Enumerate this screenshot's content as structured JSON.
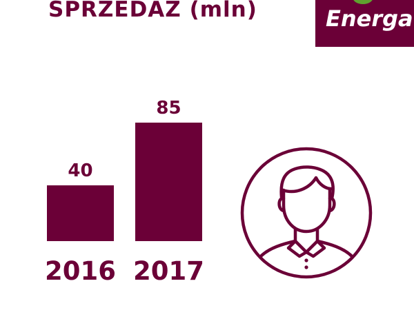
{
  "header": {
    "title_main": "SPRZEDAŻ",
    "title_unit": "(mln)"
  },
  "logo": {
    "brand": "Energa",
    "bg_color": "#6b0037",
    "leaf_color": "#5fa32f"
  },
  "icons": {
    "person": "person-avatar-icon"
  },
  "colors": {
    "accent": "#6b0037"
  },
  "chart_data": {
    "type": "bar",
    "title": "SPRZEDAŻ (mln)",
    "categories": [
      "2016",
      "2017"
    ],
    "values": [
      40,
      85
    ],
    "ylim": [
      0,
      85
    ],
    "grid": false
  }
}
